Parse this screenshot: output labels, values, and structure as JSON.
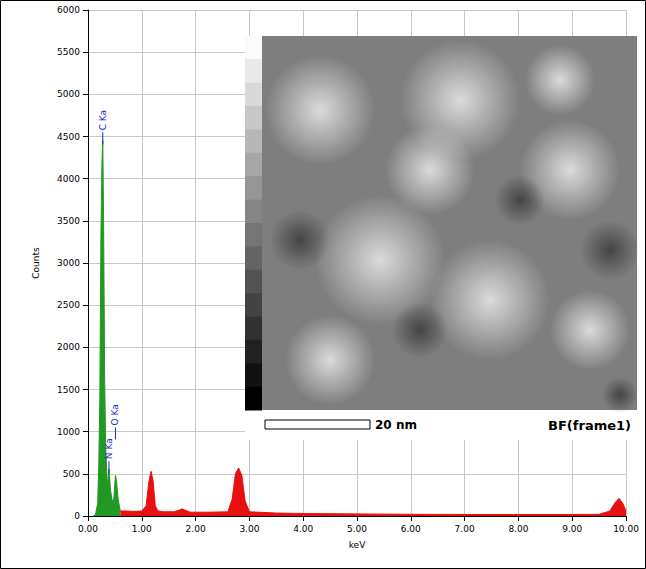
{
  "chart_data": {
    "type": "area",
    "x_label": "keV",
    "y_label": "Counts",
    "xlim": [
      0,
      10
    ],
    "xticks": [
      {
        "value": 0,
        "label": "0.00"
      },
      {
        "value": 1,
        "label": "1.00"
      },
      {
        "value": 2,
        "label": "2.00"
      },
      {
        "value": 3,
        "label": "3.00"
      },
      {
        "value": 4,
        "label": "4.00"
      },
      {
        "value": 5,
        "label": "5.00"
      },
      {
        "value": 6,
        "label": "6.00"
      },
      {
        "value": 7,
        "label": "7.00"
      },
      {
        "value": 8,
        "label": "8.00"
      },
      {
        "value": 9,
        "label": "9.00"
      },
      {
        "value": 10,
        "label": "10.00"
      }
    ],
    "ylim": [
      0,
      6000
    ],
    "yticks": [
      0,
      500,
      1000,
      1500,
      2000,
      2500,
      3000,
      3500,
      4000,
      4500,
      5000,
      5500,
      6000
    ],
    "grid": true,
    "series": [
      {
        "color": "#229922",
        "x": [
          0.1,
          0.14,
          0.18,
          0.2,
          0.22,
          0.24,
          0.26,
          0.275,
          0.29,
          0.31,
          0.33,
          0.36,
          0.39,
          0.42,
          0.45,
          0.48,
          0.51,
          0.53,
          0.56,
          0.6
        ],
        "values": [
          0,
          20,
          150,
          600,
          1400,
          3300,
          4200,
          4450,
          3500,
          1600,
          800,
          350,
          560,
          300,
          180,
          200,
          480,
          420,
          200,
          60
        ]
      },
      {
        "color": "#e81010",
        "x": [
          0.6,
          0.7,
          0.8,
          0.9,
          1.0,
          1.08,
          1.13,
          1.17,
          1.21,
          1.25,
          1.3,
          1.4,
          1.6,
          1.7,
          1.75,
          1.8,
          1.9,
          2.2,
          2.6,
          2.68,
          2.74,
          2.8,
          2.86,
          2.92,
          3.0,
          3.5,
          4.0,
          5.0,
          6.0,
          7.0,
          8.0,
          9.0,
          9.5,
          9.7,
          9.8,
          9.87,
          9.94,
          10.0
        ],
        "values": [
          60,
          60,
          55,
          55,
          60,
          120,
          400,
          530,
          420,
          120,
          60,
          50,
          50,
          70,
          85,
          70,
          45,
          45,
          50,
          200,
          500,
          570,
          480,
          180,
          50,
          35,
          30,
          25,
          20,
          18,
          18,
          18,
          20,
          60,
          160,
          210,
          150,
          60
        ]
      }
    ],
    "annotations": [
      {
        "text": "C Ka",
        "x": 0.275,
        "y": 4550
      },
      {
        "text": "N Ka",
        "x": 0.39,
        "y": 650
      },
      {
        "text": "O Ka",
        "x": 0.51,
        "y": 1050
      },
      {
        "text": "20 nm"
      },
      {
        "text": "BF(frame1)"
      }
    ]
  }
}
